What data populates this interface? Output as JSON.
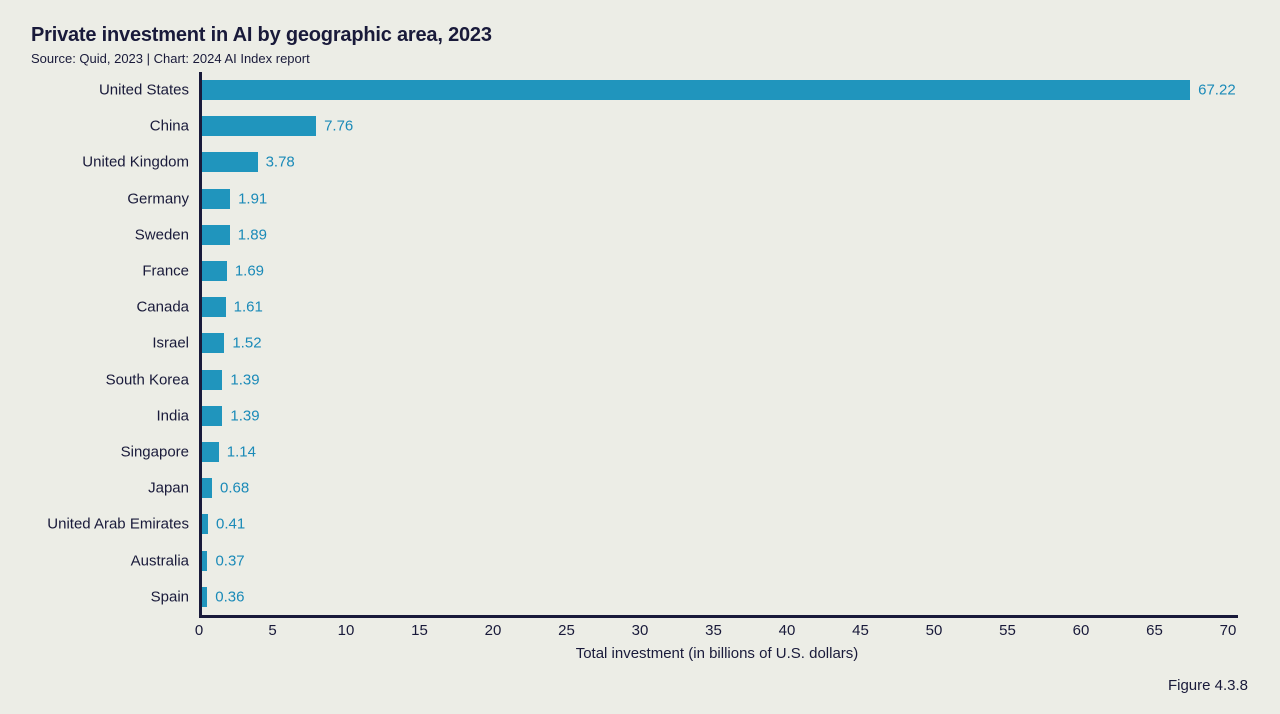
{
  "page": {
    "title": "Private investment in AI by geographic area, 2023",
    "subtitle": "Source: Quid, 2023 | Chart: 2024 AI Index report",
    "figure_caption": "Figure 4.3.8"
  },
  "colors": {
    "background": "#ECEDE6",
    "bar": "#2095BD",
    "value_label": "#1A8AB8",
    "text_dark": "#191A3A",
    "axis_line": "#191A3A"
  },
  "chart_data": {
    "type": "bar",
    "orientation": "horizontal",
    "title": "Private investment in AI by geographic area, 2023",
    "categories": [
      "United States",
      "China",
      "United Kingdom",
      "Germany",
      "Sweden",
      "France",
      "Canada",
      "Israel",
      "South Korea",
      "India",
      "Singapore",
      "Japan",
      "United Arab Emirates",
      "Australia",
      "Spain"
    ],
    "values": [
      67.22,
      7.76,
      3.78,
      1.91,
      1.89,
      1.69,
      1.61,
      1.52,
      1.39,
      1.39,
      1.14,
      0.68,
      0.41,
      0.37,
      0.36
    ],
    "xlabel": "Total investment (in billions of U.S. dollars)",
    "ylabel": "",
    "xlim": [
      0,
      70
    ],
    "xticks": [
      0,
      5,
      10,
      15,
      20,
      25,
      30,
      35,
      40,
      45,
      50,
      55,
      60,
      65,
      70
    ],
    "grid": false,
    "legend": "none",
    "value_label_decimals": 2
  }
}
